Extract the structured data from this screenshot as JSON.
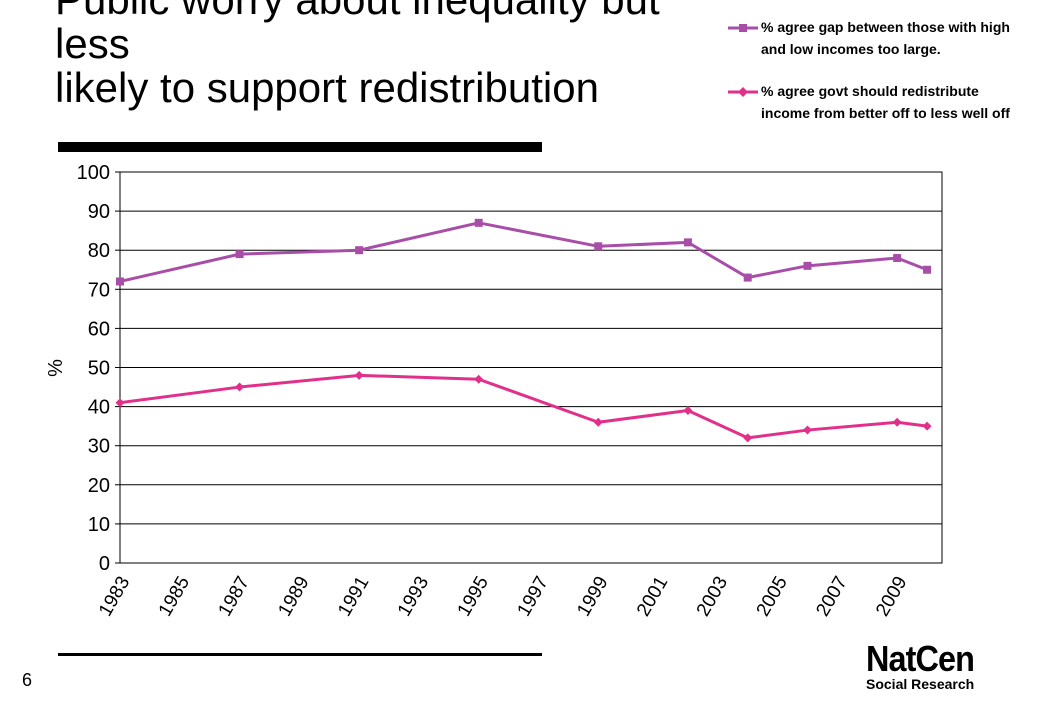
{
  "page": {
    "title_lines": [
      "Public worry about inequality but",
      "less",
      "likely to support redistribution"
    ],
    "page_number": "6",
    "logo": {
      "name": "NatCen",
      "subtitle": "Social Research"
    }
  },
  "chart_data": {
    "type": "line",
    "ylabel": "%",
    "xlabel": "",
    "ylim": [
      0,
      100
    ],
    "yticks": [
      0,
      10,
      20,
      30,
      40,
      50,
      60,
      70,
      80,
      90,
      100
    ],
    "xlim": [
      1983,
      2010.5
    ],
    "xticks": [
      1983,
      1985,
      1987,
      1989,
      1991,
      1993,
      1995,
      1997,
      1999,
      2001,
      2003,
      2005,
      2007,
      2009
    ],
    "grid": "horizontal",
    "legend_position": "top-right",
    "series": [
      {
        "name": "% agree gap between those with high and low incomes too large.",
        "color": "#a94ea8",
        "marker": "square",
        "x": [
          1983,
          1987,
          1991,
          1995,
          1999,
          2002,
          2004,
          2006,
          2009,
          2010
        ],
        "values": [
          72,
          79,
          80,
          87,
          81,
          82,
          73,
          76,
          78,
          75
        ]
      },
      {
        "name": "% agree govt should redistribute income from better off to less well off",
        "color": "#e2308a",
        "marker": "diamond",
        "x": [
          1983,
          1987,
          1991,
          1995,
          1999,
          2002,
          2004,
          2006,
          2009,
          2010
        ],
        "values": [
          41,
          45,
          48,
          47,
          36,
          39,
          32,
          34,
          36,
          35
        ]
      }
    ]
  }
}
